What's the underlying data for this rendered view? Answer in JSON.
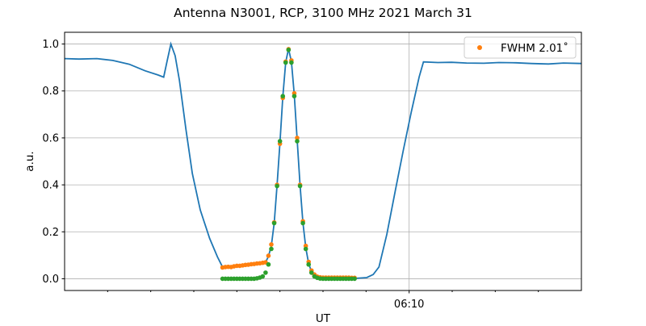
{
  "chart_data": {
    "type": "line",
    "title": "Antenna N3001, RCP, 3100 MHz 2021 March 31",
    "xlabel": "UT",
    "ylabel": "a.u.",
    "xlim": [
      "06:02:00",
      "06:14:00"
    ],
    "ylim": [
      -0.05,
      1.05
    ],
    "x_major_ticks": [
      {
        "time": "06:10:00",
        "label": "06:10"
      }
    ],
    "x_minor_ticks": [
      "06:03:00",
      "06:04:00",
      "06:05:00",
      "06:06:00",
      "06:07:00",
      "06:08:00",
      "06:09:00",
      "06:11:00",
      "06:12:00",
      "06:13:00"
    ],
    "y_ticks": [
      0.0,
      0.2,
      0.4,
      0.6,
      0.8,
      1.0
    ],
    "y_tick_labels": [
      "0.0",
      "0.2",
      "0.4",
      "0.6",
      "0.8",
      "1.0"
    ],
    "grid": true,
    "legend": {
      "placement": "top-right",
      "entries": [
        "FWHM 2.01˚"
      ]
    },
    "series": [
      {
        "style": "line",
        "color": "#1f77b4",
        "points": [
          [
            "06:02:00",
            0.938
          ],
          [
            "06:02:20",
            0.936
          ],
          [
            "06:02:45",
            0.938
          ],
          [
            "06:03:07",
            0.93
          ],
          [
            "06:03:30",
            0.914
          ],
          [
            "06:03:52",
            0.886
          ],
          [
            "06:04:10",
            0.868
          ],
          [
            "06:04:18",
            0.859
          ],
          [
            "06:04:23",
            0.93
          ],
          [
            "06:04:28",
            1.0
          ],
          [
            "06:04:34",
            0.95
          ],
          [
            "06:04:40",
            0.845
          ],
          [
            "06:04:49",
            0.638
          ],
          [
            "06:04:58",
            0.448
          ],
          [
            "06:05:09",
            0.293
          ],
          [
            "06:05:22",
            0.172
          ],
          [
            "06:05:33",
            0.093
          ],
          [
            "06:05:40",
            0.05
          ],
          [
            "06:06:00",
            0.055
          ],
          [
            "06:06:20",
            0.062
          ],
          [
            "06:06:40",
            0.07
          ],
          [
            "06:06:44",
            0.095
          ],
          [
            "06:06:48",
            0.14
          ],
          [
            "06:06:52",
            0.238
          ],
          [
            "06:06:56",
            0.398
          ],
          [
            "06:07:00",
            0.58
          ],
          [
            "06:07:04",
            0.774
          ],
          [
            "06:07:08",
            0.922
          ],
          [
            "06:07:12",
            0.98
          ],
          [
            "06:07:16",
            0.925
          ],
          [
            "06:07:20",
            0.785
          ],
          [
            "06:07:24",
            0.592
          ],
          [
            "06:07:28",
            0.398
          ],
          [
            "06:07:32",
            0.24
          ],
          [
            "06:07:36",
            0.132
          ],
          [
            "06:07:40",
            0.065
          ],
          [
            "06:07:44",
            0.03
          ],
          [
            "06:07:48",
            0.012
          ],
          [
            "06:07:56",
            0.004
          ],
          [
            "06:08:46",
            0.002
          ],
          [
            "06:09:01",
            0.005
          ],
          [
            "06:09:10",
            0.018
          ],
          [
            "06:09:18",
            0.05
          ],
          [
            "06:09:29",
            0.19
          ],
          [
            "06:09:41",
            0.38
          ],
          [
            "06:09:52",
            0.55
          ],
          [
            "06:10:03",
            0.71
          ],
          [
            "06:10:14",
            0.86
          ],
          [
            "06:10:20",
            0.924
          ],
          [
            "06:10:40",
            0.921
          ],
          [
            "06:10:59",
            0.922
          ],
          [
            "06:11:20",
            0.919
          ],
          [
            "06:11:44",
            0.918
          ],
          [
            "06:12:05",
            0.921
          ],
          [
            "06:12:29",
            0.92
          ],
          [
            "06:12:50",
            0.917
          ],
          [
            "06:13:14",
            0.915
          ],
          [
            "06:13:35",
            0.919
          ],
          [
            "06:14:00",
            0.917
          ]
        ]
      },
      {
        "style": "markers",
        "color": "#ff7f0e",
        "name": "FWHM 2.01˚",
        "points": [
          [
            "06:05:40",
            0.048
          ],
          [
            "06:05:44",
            0.05
          ],
          [
            "06:05:48",
            0.051
          ],
          [
            "06:05:52",
            0.05
          ],
          [
            "06:05:56",
            0.053
          ],
          [
            "06:06:00",
            0.055
          ],
          [
            "06:06:04",
            0.055
          ],
          [
            "06:06:08",
            0.057
          ],
          [
            "06:06:12",
            0.059
          ],
          [
            "06:06:16",
            0.06
          ],
          [
            "06:06:20",
            0.062
          ],
          [
            "06:06:24",
            0.063
          ],
          [
            "06:06:28",
            0.065
          ],
          [
            "06:06:32",
            0.066
          ],
          [
            "06:06:36",
            0.068
          ],
          [
            "06:06:40",
            0.07
          ],
          [
            "06:06:44",
            0.098
          ],
          [
            "06:06:48",
            0.146
          ],
          [
            "06:06:52",
            0.24
          ],
          [
            "06:06:56",
            0.4
          ],
          [
            "06:07:00",
            0.575
          ],
          [
            "06:07:04",
            0.77
          ],
          [
            "06:07:08",
            0.925
          ],
          [
            "06:07:12",
            0.978
          ],
          [
            "06:07:16",
            0.93
          ],
          [
            "06:07:20",
            0.79
          ],
          [
            "06:07:24",
            0.6
          ],
          [
            "06:07:28",
            0.4
          ],
          [
            "06:07:32",
            0.245
          ],
          [
            "06:07:36",
            0.14
          ],
          [
            "06:07:40",
            0.072
          ],
          [
            "06:07:44",
            0.035
          ],
          [
            "06:07:48",
            0.018
          ],
          [
            "06:07:52",
            0.009
          ],
          [
            "06:07:56",
            0.006
          ],
          [
            "06:08:00",
            0.005
          ],
          [
            "06:08:04",
            0.005
          ],
          [
            "06:08:08",
            0.005
          ],
          [
            "06:08:12",
            0.005
          ],
          [
            "06:08:16",
            0.005
          ],
          [
            "06:08:20",
            0.005
          ],
          [
            "06:08:24",
            0.005
          ],
          [
            "06:08:28",
            0.005
          ],
          [
            "06:08:32",
            0.005
          ],
          [
            "06:08:36",
            0.005
          ],
          [
            "06:08:40",
            0.004
          ],
          [
            "06:08:44",
            0.004
          ]
        ]
      },
      {
        "style": "markers",
        "color": "#2ca02c",
        "points": [
          [
            "06:05:40",
            0.0
          ],
          [
            "06:05:44",
            0.0
          ],
          [
            "06:05:48",
            0.0
          ],
          [
            "06:05:52",
            0.0
          ],
          [
            "06:05:56",
            0.0
          ],
          [
            "06:06:00",
            0.0
          ],
          [
            "06:06:04",
            0.0
          ],
          [
            "06:06:08",
            0.0
          ],
          [
            "06:06:12",
            0.0
          ],
          [
            "06:06:16",
            0.0
          ],
          [
            "06:06:20",
            0.0
          ],
          [
            "06:06:24",
            0.0
          ],
          [
            "06:06:28",
            0.002
          ],
          [
            "06:06:32",
            0.005
          ],
          [
            "06:06:36",
            0.01
          ],
          [
            "06:06:40",
            0.026
          ],
          [
            "06:06:44",
            0.061
          ],
          [
            "06:06:48",
            0.127
          ],
          [
            "06:06:52",
            0.237
          ],
          [
            "06:06:56",
            0.395
          ],
          [
            "06:07:00",
            0.586
          ],
          [
            "06:07:04",
            0.778
          ],
          [
            "06:07:08",
            0.921
          ],
          [
            "06:07:12",
            0.975
          ],
          [
            "06:07:16",
            0.921
          ],
          [
            "06:07:20",
            0.778
          ],
          [
            "06:07:24",
            0.586
          ],
          [
            "06:07:28",
            0.395
          ],
          [
            "06:07:32",
            0.237
          ],
          [
            "06:07:36",
            0.127
          ],
          [
            "06:07:40",
            0.061
          ],
          [
            "06:07:44",
            0.026
          ],
          [
            "06:07:48",
            0.01
          ],
          [
            "06:07:52",
            0.004
          ],
          [
            "06:07:56",
            0.001
          ],
          [
            "06:08:00",
            0.0
          ],
          [
            "06:08:04",
            0.0
          ],
          [
            "06:08:08",
            0.0
          ],
          [
            "06:08:12",
            0.0
          ],
          [
            "06:08:16",
            0.0
          ],
          [
            "06:08:20",
            0.0
          ],
          [
            "06:08:24",
            0.0
          ],
          [
            "06:08:28",
            0.0
          ],
          [
            "06:08:32",
            0.0
          ],
          [
            "06:08:36",
            0.0
          ],
          [
            "06:08:40",
            0.0
          ],
          [
            "06:08:44",
            0.0
          ]
        ]
      }
    ]
  }
}
